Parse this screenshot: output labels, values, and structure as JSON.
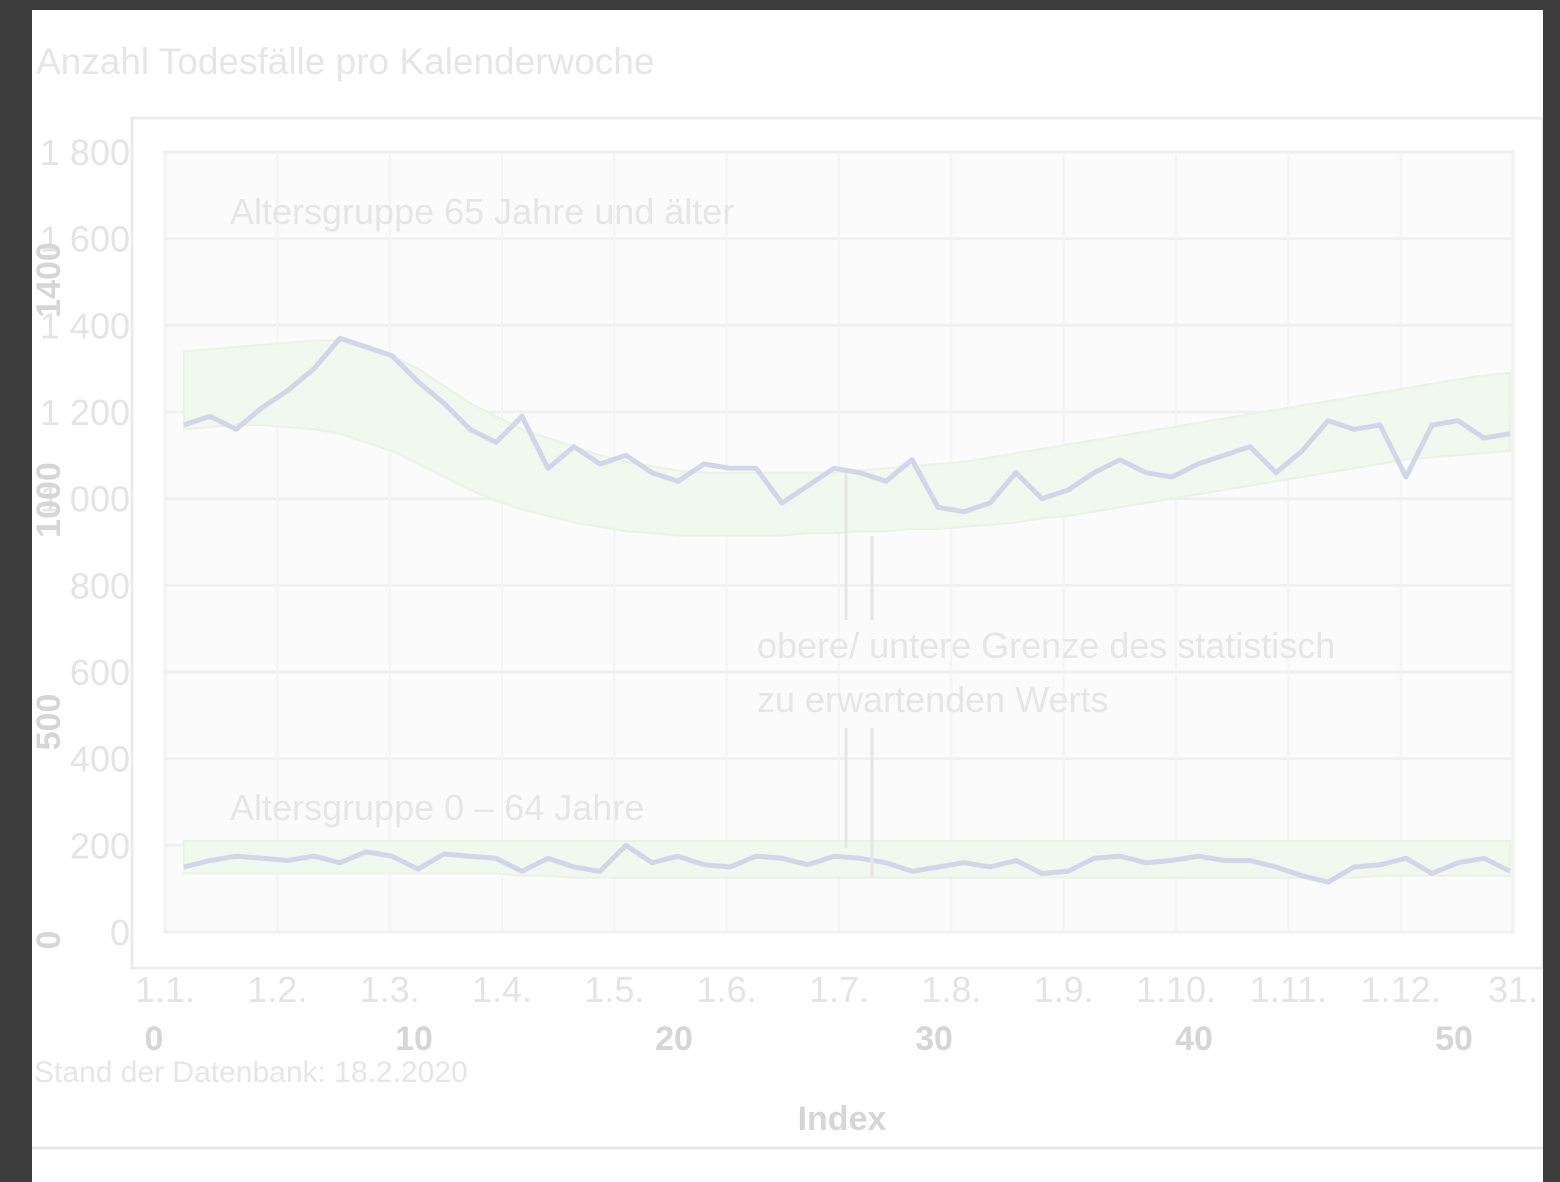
{
  "chart_data": {
    "type": "line",
    "title": "Anzahl Todesfälle pro Kalenderwoche",
    "y_ticks": [
      "1 800",
      "1 600",
      "1 400",
      "1 200",
      "1 000",
      "800",
      "600",
      "400",
      "200",
      "0"
    ],
    "ylim": [
      0,
      1800
    ],
    "x_ticks": [
      "1.1.",
      "1.2.",
      "1.3.",
      "1.4.",
      "1.5.",
      "1.6.",
      "1.7.",
      "1.8.",
      "1.9.",
      "1.10.",
      "1.11.",
      "1.12.",
      "31."
    ],
    "index_ticks": [
      "0",
      "10",
      "20",
      "30",
      "40",
      "50"
    ],
    "xlabel": "Index",
    "ghost_y_ticks": [
      "1400",
      "1000",
      "500",
      "0"
    ],
    "grid": true,
    "annotations": {
      "group_65": "Altersgruppe 65 Jahre und älter",
      "group_0_64": "Altersgruppe 0 – 64 Jahre",
      "band_line1": "obere/ untere Grenze des statistisch",
      "band_line2": "zu erwartenden Werts"
    },
    "footer": "Stand der Datenbank: 18.2.2020",
    "colors": {
      "line": "#d2d6ea",
      "band": "#f1f8ee",
      "grid": "#f0f0f0",
      "plot_bg": "#fbfbfb"
    },
    "series": [
      {
        "name": "Altersgruppe 65 Jahre und älter",
        "x": [
          1,
          2,
          3,
          4,
          5,
          6,
          7,
          8,
          9,
          10,
          11,
          12,
          13,
          14,
          15,
          16,
          17,
          18,
          19,
          20,
          21,
          22,
          23,
          24,
          25,
          26,
          27,
          28,
          29,
          30,
          31,
          32,
          33,
          34,
          35,
          36,
          37,
          38,
          39,
          40,
          41,
          42,
          43,
          44,
          45,
          46,
          47,
          48,
          49,
          50,
          51,
          52
        ],
        "values": [
          1170,
          1190,
          1160,
          1210,
          1250,
          1300,
          1370,
          1350,
          1330,
          1270,
          1220,
          1160,
          1130,
          1190,
          1070,
          1120,
          1080,
          1100,
          1060,
          1040,
          1080,
          1070,
          1070,
          990,
          1030,
          1070,
          1060,
          1040,
          1090,
          980,
          970,
          990,
          1060,
          1000,
          1020,
          1060,
          1090,
          1060,
          1050,
          1080,
          1100,
          1120,
          1060,
          1110,
          1180,
          1160,
          1170,
          1050,
          1170,
          1180,
          1140,
          1150
        ],
        "upper": [
          1340,
          1345,
          1350,
          1355,
          1360,
          1365,
          1365,
          1355,
          1330,
          1300,
          1260,
          1220,
          1190,
          1160,
          1140,
          1120,
          1100,
          1085,
          1075,
          1065,
          1060,
          1060,
          1060,
          1060,
          1060,
          1060,
          1065,
          1070,
          1075,
          1080,
          1085,
          1095,
          1105,
          1115,
          1125,
          1135,
          1145,
          1155,
          1165,
          1175,
          1185,
          1195,
          1205,
          1215,
          1225,
          1235,
          1245,
          1255,
          1265,
          1275,
          1285,
          1290
        ],
        "lower": [
          1160,
          1165,
          1170,
          1170,
          1165,
          1160,
          1150,
          1130,
          1110,
          1080,
          1050,
          1020,
          995,
          975,
          960,
          945,
          935,
          925,
          920,
          915,
          915,
          915,
          915,
          915,
          920,
          920,
          925,
          925,
          930,
          930,
          935,
          940,
          945,
          955,
          960,
          970,
          980,
          990,
          1000,
          1010,
          1020,
          1030,
          1040,
          1050,
          1060,
          1070,
          1080,
          1090,
          1095,
          1100,
          1105,
          1110
        ]
      },
      {
        "name": "Altersgruppe 0 – 64 Jahre",
        "x": [
          1,
          2,
          3,
          4,
          5,
          6,
          7,
          8,
          9,
          10,
          11,
          12,
          13,
          14,
          15,
          16,
          17,
          18,
          19,
          20,
          21,
          22,
          23,
          24,
          25,
          26,
          27,
          28,
          29,
          30,
          31,
          32,
          33,
          34,
          35,
          36,
          37,
          38,
          39,
          40,
          41,
          42,
          43,
          44,
          45,
          46,
          47,
          48,
          49,
          50,
          51,
          52
        ],
        "values": [
          150,
          165,
          175,
          170,
          165,
          175,
          160,
          185,
          175,
          145,
          180,
          175,
          170,
          140,
          170,
          150,
          140,
          200,
          160,
          175,
          155,
          150,
          175,
          170,
          155,
          175,
          170,
          160,
          140,
          150,
          160,
          150,
          165,
          135,
          140,
          170,
          175,
          160,
          165,
          175,
          165,
          165,
          150,
          130,
          115,
          150,
          155,
          170,
          135,
          160,
          170,
          140
        ],
        "upper": [
          210,
          210,
          210,
          210,
          210,
          210,
          210,
          210,
          210,
          210,
          210,
          210,
          210,
          210,
          210,
          210,
          210,
          210,
          210,
          210,
          210,
          210,
          210,
          210,
          210,
          210,
          210,
          210,
          210,
          210,
          210,
          210,
          210,
          210,
          210,
          210,
          210,
          210,
          210,
          210,
          210,
          210,
          210,
          210,
          210,
          210,
          210,
          210,
          210,
          210,
          210,
          210
        ],
        "lower": [
          135,
          135,
          135,
          135,
          135,
          135,
          135,
          135,
          135,
          135,
          135,
          135,
          135,
          130,
          130,
          125,
          125,
          125,
          125,
          125,
          125,
          125,
          125,
          125,
          125,
          125,
          125,
          125,
          125,
          125,
          125,
          125,
          125,
          125,
          125,
          125,
          125,
          125,
          125,
          125,
          125,
          125,
          125,
          125,
          125,
          125,
          130,
          130,
          130,
          130,
          130,
          130
        ]
      }
    ]
  }
}
